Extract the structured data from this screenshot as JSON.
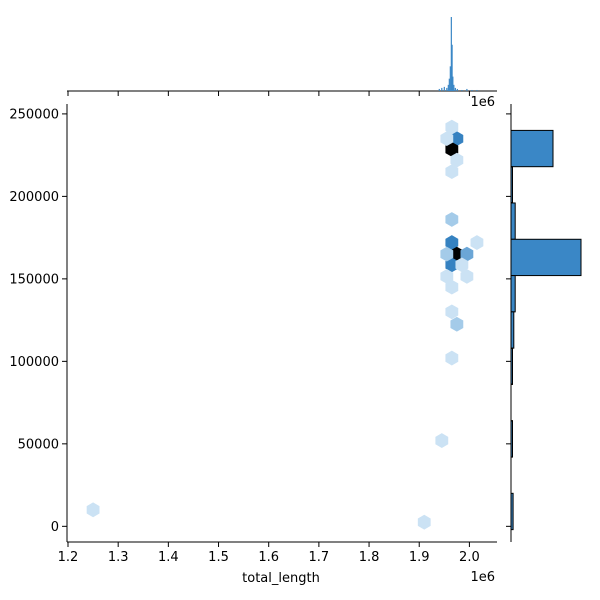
{
  "chart_data": {
    "type": "hexbin-joint",
    "xlabel": "total_length",
    "ylabel": "",
    "x_scale_label": "1e6",
    "xlim": [
      1.198,
      2.055
    ],
    "ylim": [
      -9500,
      256000
    ],
    "x_ticks": [
      1.2,
      1.3,
      1.4,
      1.5,
      1.6,
      1.7,
      1.8,
      1.9,
      2.0
    ],
    "x_tick_labels": [
      "1.2",
      "1.3",
      "1.4",
      "1.5",
      "1.6",
      "1.7",
      "1.8",
      "1.9",
      "2.0"
    ],
    "y_ticks": [
      0,
      50000,
      100000,
      150000,
      200000,
      250000
    ],
    "y_tick_labels": [
      "0",
      "50000",
      "100000",
      "150000",
      "200000",
      "250000"
    ],
    "color": "#3a87c6",
    "hexbins": [
      {
        "x": 1.975,
        "y": 235000,
        "count": 4
      },
      {
        "x": 1.965,
        "y": 228500,
        "count": 7
      },
      {
        "x": 1.965,
        "y": 242000,
        "count": 1
      },
      {
        "x": 1.955,
        "y": 235000,
        "count": 1
      },
      {
        "x": 1.975,
        "y": 222000,
        "count": 1
      },
      {
        "x": 1.965,
        "y": 215000,
        "count": 1
      },
      {
        "x": 1.965,
        "y": 186000,
        "count": 2
      },
      {
        "x": 1.965,
        "y": 172000,
        "count": 4
      },
      {
        "x": 1.975,
        "y": 165000,
        "count": 7
      },
      {
        "x": 1.965,
        "y": 158500,
        "count": 4
      },
      {
        "x": 1.955,
        "y": 165000,
        "count": 2
      },
      {
        "x": 1.995,
        "y": 165000,
        "count": 3
      },
      {
        "x": 2.015,
        "y": 172000,
        "count": 1
      },
      {
        "x": 1.985,
        "y": 158500,
        "count": 1
      },
      {
        "x": 1.955,
        "y": 151500,
        "count": 1
      },
      {
        "x": 1.995,
        "y": 151500,
        "count": 1
      },
      {
        "x": 1.965,
        "y": 145000,
        "count": 1
      },
      {
        "x": 1.975,
        "y": 122500,
        "count": 2
      },
      {
        "x": 1.965,
        "y": 130000,
        "count": 1
      },
      {
        "x": 1.965,
        "y": 102000,
        "count": 1
      },
      {
        "x": 1.945,
        "y": 52000,
        "count": 1
      },
      {
        "x": 1.91,
        "y": 2500,
        "count": 1
      },
      {
        "x": 1.25,
        "y": 10000,
        "count": 1
      }
    ],
    "x_marginal_hist": [
      {
        "x": 1.94,
        "h": 2
      },
      {
        "x": 1.945,
        "h": 3
      },
      {
        "x": 1.95,
        "h": 4
      },
      {
        "x": 1.955,
        "h": 3
      },
      {
        "x": 1.958,
        "h": 6
      },
      {
        "x": 1.96,
        "h": 12
      },
      {
        "x": 1.962,
        "h": 24
      },
      {
        "x": 1.964,
        "h": 72
      },
      {
        "x": 1.9655,
        "h": 45
      },
      {
        "x": 1.967,
        "h": 14
      },
      {
        "x": 1.969,
        "h": 6
      },
      {
        "x": 1.972,
        "h": 3
      },
      {
        "x": 1.976,
        "h": 2
      },
      {
        "x": 1.985,
        "h": 1
      },
      {
        "x": 1.995,
        "h": 2
      },
      {
        "x": 2.005,
        "h": 1
      },
      {
        "x": 2.015,
        "h": 1
      }
    ],
    "y_marginal_hist": [
      {
        "y0": 218000,
        "y1": 240000,
        "count": 30
      },
      {
        "y0": 196000,
        "y1": 218000,
        "count": 1
      },
      {
        "y0": 174000,
        "y1": 196000,
        "count": 3
      },
      {
        "y0": 152000,
        "y1": 174000,
        "count": 50
      },
      {
        "y0": 130000,
        "y1": 152000,
        "count": 3
      },
      {
        "y0": 108000,
        "y1": 130000,
        "count": 2
      },
      {
        "y0": 86000,
        "y1": 108000,
        "count": 1
      },
      {
        "y0": 42000,
        "y1": 64000,
        "count": 0.5
      },
      {
        "y0": 42000,
        "y1": 64000,
        "count": 1
      },
      {
        "y0": -2000,
        "y1": 20000,
        "count": 1.5
      }
    ]
  }
}
